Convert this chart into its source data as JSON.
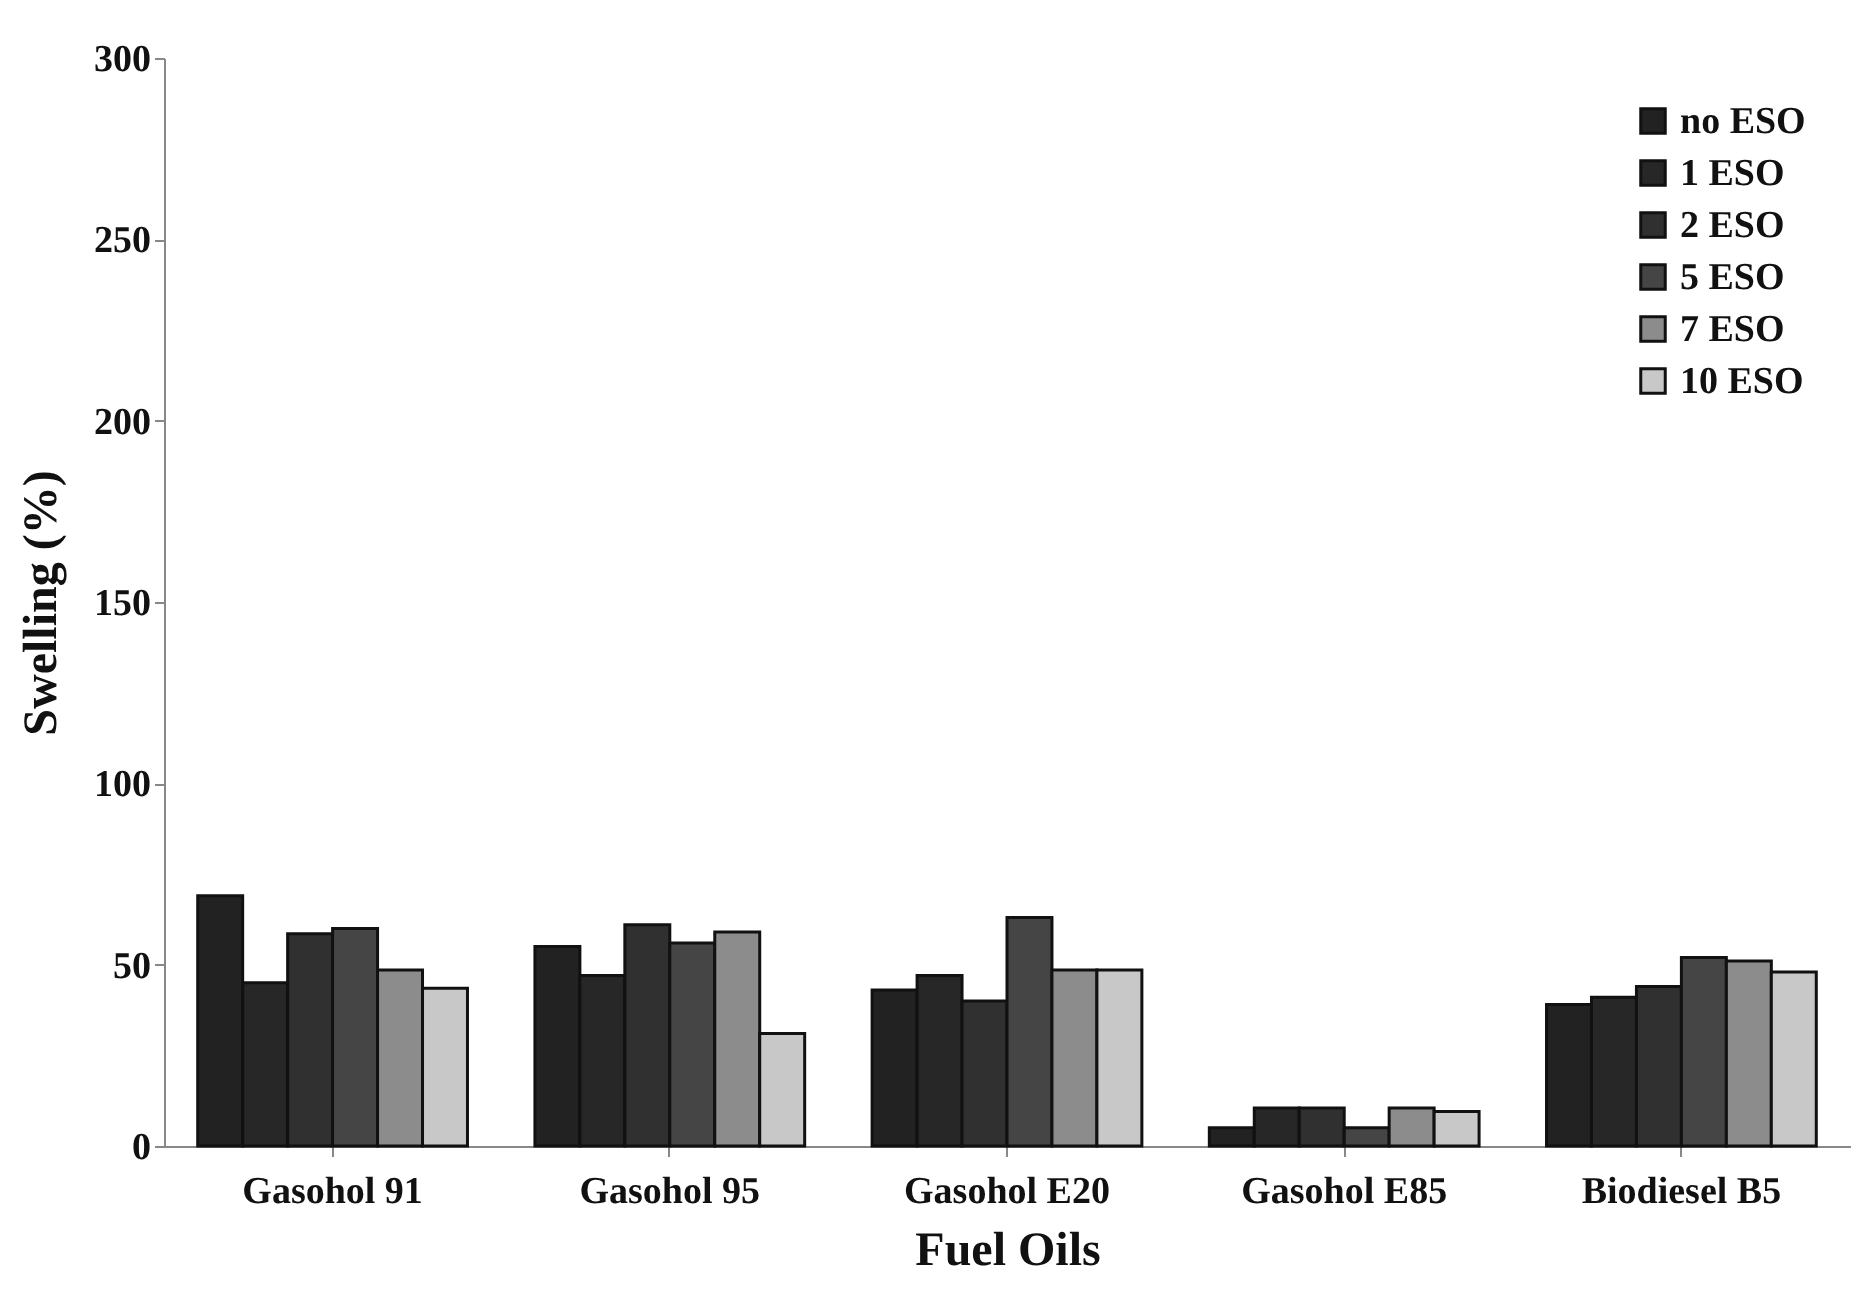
{
  "chart_data": {
    "type": "bar",
    "xlabel": "Fuel Oils",
    "ylabel": "Swelling (%)",
    "categories": [
      "Gasohol 91",
      "Gasohol 95",
      "Gasohol E20",
      "Gasohol E85",
      "Biodiesel B5"
    ],
    "series": [
      {
        "name": "no ESO",
        "color": "#222222",
        "values": [
          69,
          55,
          43,
          5,
          39
        ]
      },
      {
        "name": "1 ESO",
        "color": "#272727",
        "values": [
          45,
          47,
          47,
          10.5,
          41
        ]
      },
      {
        "name": "2 ESO",
        "color": "#303030",
        "values": [
          58.5,
          61,
          40,
          10.5,
          44
        ]
      },
      {
        "name": "5 ESO",
        "color": "#454545",
        "values": [
          60,
          56,
          63,
          5,
          52
        ]
      },
      {
        "name": "7 ESO",
        "color": "#8c8c8c",
        "values": [
          48.5,
          59,
          48.5,
          10.5,
          51
        ]
      },
      {
        "name": "10 ESO",
        "color": "#c8c8c8",
        "values": [
          43.5,
          31,
          48.5,
          9.5,
          48
        ]
      }
    ],
    "ylim": [
      0,
      300
    ],
    "yticks": [
      0,
      50,
      100,
      150,
      200,
      250,
      300
    ],
    "grid": false,
    "legend": "top right"
  }
}
